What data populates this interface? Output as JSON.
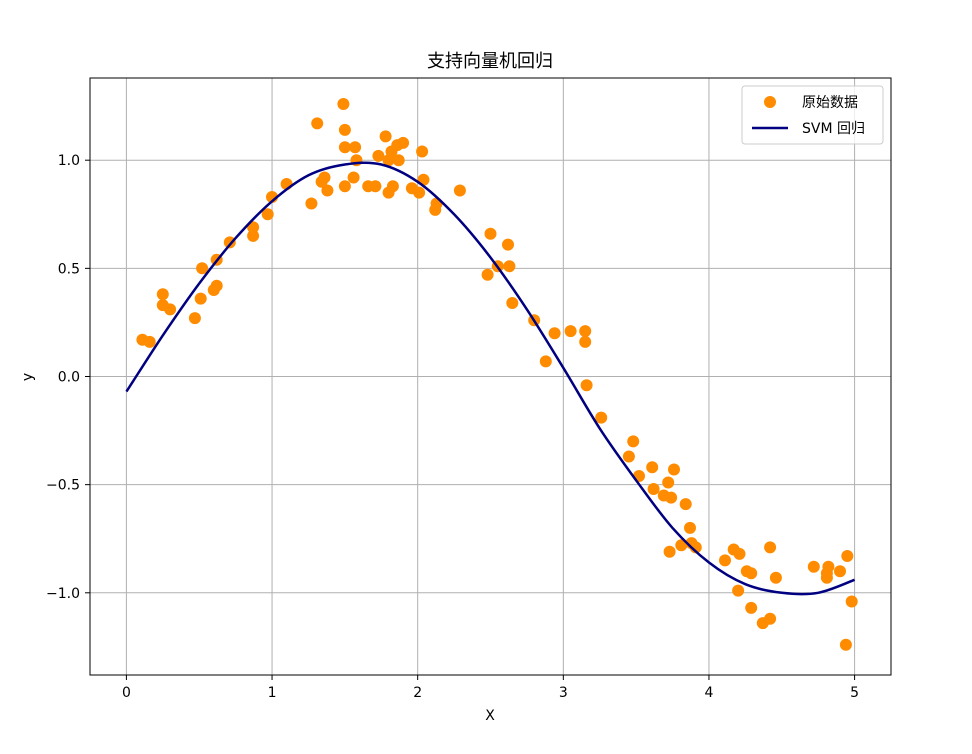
{
  "chart_data": {
    "type": "scatter",
    "title": "支持向量机回归",
    "xlabel": "X",
    "ylabel": "y",
    "xlim": [
      -0.25,
      5.25
    ],
    "ylim": [
      -1.38,
      1.38
    ],
    "xticks": [
      0,
      1,
      2,
      3,
      4,
      5
    ],
    "xtick_labels": [
      "0",
      "1",
      "2",
      "3",
      "4",
      "5"
    ],
    "yticks": [
      -1.0,
      -0.5,
      0.0,
      0.5,
      1.0
    ],
    "ytick_labels": [
      "−1.0",
      "−0.5",
      "0.0",
      "0.5",
      "1.0"
    ],
    "grid": true,
    "legend": "top-right",
    "series": [
      {
        "name": "原始数据",
        "kind": "scatter",
        "color": "#ff8c00",
        "points": [
          [
            0.11,
            0.17
          ],
          [
            0.16,
            0.16
          ],
          [
            0.25,
            0.38
          ],
          [
            0.25,
            0.33
          ],
          [
            0.3,
            0.31
          ],
          [
            0.47,
            0.27
          ],
          [
            0.51,
            0.36
          ],
          [
            0.52,
            0.5
          ],
          [
            0.6,
            0.4
          ],
          [
            0.62,
            0.42
          ],
          [
            0.62,
            0.54
          ],
          [
            0.71,
            0.62
          ],
          [
            0.87,
            0.65
          ],
          [
            0.87,
            0.69
          ],
          [
            0.97,
            0.75
          ],
          [
            1.0,
            0.83
          ],
          [
            1.1,
            0.89
          ],
          [
            1.27,
            0.8
          ],
          [
            1.31,
            1.17
          ],
          [
            1.34,
            0.9
          ],
          [
            1.36,
            0.92
          ],
          [
            1.38,
            0.86
          ],
          [
            1.49,
            1.26
          ],
          [
            1.5,
            1.14
          ],
          [
            1.5,
            1.06
          ],
          [
            1.5,
            0.88
          ],
          [
            1.56,
            0.92
          ],
          [
            1.57,
            1.06
          ],
          [
            1.58,
            1.0
          ],
          [
            1.66,
            0.88
          ],
          [
            1.71,
            0.88
          ],
          [
            1.73,
            1.02
          ],
          [
            1.78,
            1.11
          ],
          [
            1.8,
            0.85
          ],
          [
            1.8,
            1.0
          ],
          [
            1.82,
            1.04
          ],
          [
            1.83,
            0.88
          ],
          [
            1.86,
            1.07
          ],
          [
            1.87,
            1.0
          ],
          [
            1.9,
            1.08
          ],
          [
            1.96,
            0.87
          ],
          [
            2.01,
            0.85
          ],
          [
            2.03,
            1.04
          ],
          [
            2.04,
            0.91
          ],
          [
            2.12,
            0.77
          ],
          [
            2.13,
            0.8
          ],
          [
            2.29,
            0.86
          ],
          [
            2.48,
            0.47
          ],
          [
            2.5,
            0.66
          ],
          [
            2.55,
            0.51
          ],
          [
            2.62,
            0.61
          ],
          [
            2.63,
            0.51
          ],
          [
            2.65,
            0.34
          ],
          [
            2.8,
            0.26
          ],
          [
            2.88,
            0.07
          ],
          [
            2.94,
            0.2
          ],
          [
            3.05,
            0.21
          ],
          [
            3.15,
            0.21
          ],
          [
            3.15,
            0.16
          ],
          [
            3.16,
            -0.04
          ],
          [
            3.26,
            -0.19
          ],
          [
            3.45,
            -0.37
          ],
          [
            3.48,
            -0.3
          ],
          [
            3.52,
            -0.46
          ],
          [
            3.61,
            -0.42
          ],
          [
            3.62,
            -0.52
          ],
          [
            3.69,
            -0.55
          ],
          [
            3.72,
            -0.49
          ],
          [
            3.73,
            -0.81
          ],
          [
            3.74,
            -0.56
          ],
          [
            3.76,
            -0.43
          ],
          [
            3.81,
            -0.78
          ],
          [
            3.84,
            -0.59
          ],
          [
            3.87,
            -0.7
          ],
          [
            3.88,
            -0.77
          ],
          [
            3.91,
            -0.79
          ],
          [
            4.11,
            -0.85
          ],
          [
            4.17,
            -0.8
          ],
          [
            4.2,
            -0.99
          ],
          [
            4.21,
            -0.82
          ],
          [
            4.26,
            -0.9
          ],
          [
            4.29,
            -1.07
          ],
          [
            4.29,
            -0.91
          ],
          [
            4.37,
            -1.14
          ],
          [
            4.42,
            -1.12
          ],
          [
            4.42,
            -0.79
          ],
          [
            4.46,
            -0.93
          ],
          [
            4.72,
            -0.88
          ],
          [
            4.81,
            -0.93
          ],
          [
            4.81,
            -0.91
          ],
          [
            4.82,
            -0.88
          ],
          [
            4.9,
            -0.9
          ],
          [
            4.94,
            -1.24
          ],
          [
            4.95,
            -0.83
          ],
          [
            4.98,
            -1.04
          ]
        ]
      },
      {
        "name": "SVM 回归",
        "kind": "line",
        "color": "#000080",
        "x": [
          0,
          0.25,
          0.5,
          0.75,
          1.0,
          1.25,
          1.5,
          1.75,
          2.0,
          2.25,
          2.5,
          2.75,
          3.0,
          3.25,
          3.5,
          3.75,
          4.0,
          4.25,
          4.5,
          4.75,
          5.0
        ],
        "y": [
          -0.07,
          0.19,
          0.43,
          0.64,
          0.81,
          0.93,
          0.98,
          0.98,
          0.9,
          0.75,
          0.55,
          0.31,
          0.04,
          -0.24,
          -0.48,
          -0.7,
          -0.86,
          -0.96,
          -1.0,
          -1.0,
          -0.94
        ]
      }
    ]
  }
}
